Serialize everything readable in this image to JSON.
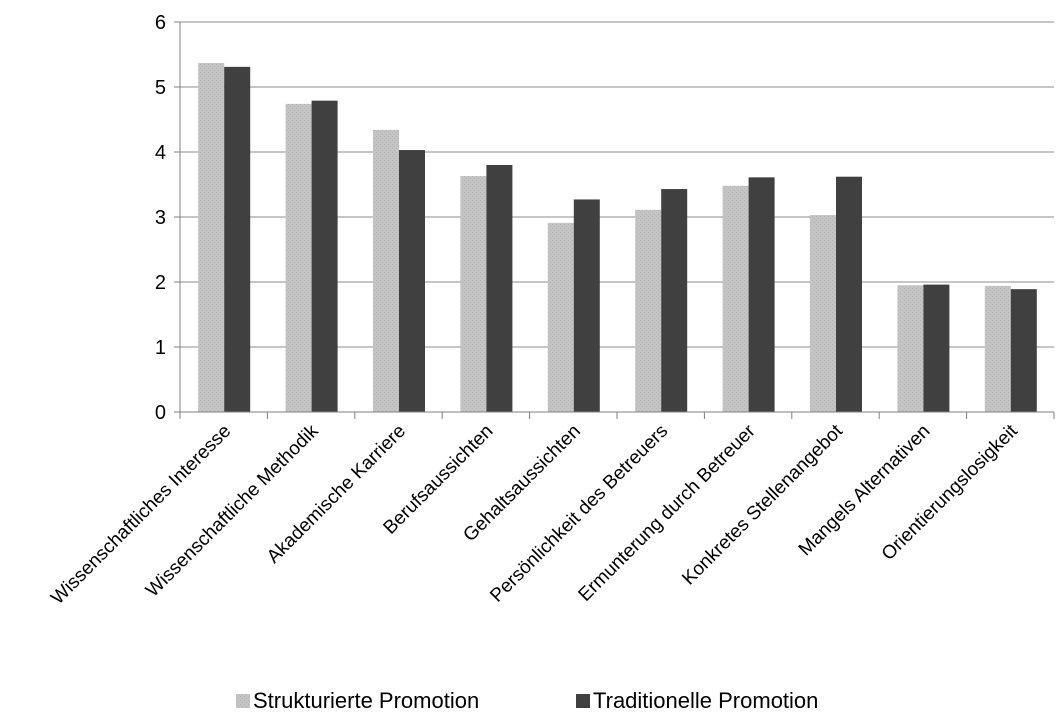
{
  "chart_data": {
    "type": "bar",
    "title": "",
    "xlabel": "",
    "ylabel": "",
    "ylim": [
      0,
      6
    ],
    "yticks": [
      0,
      1,
      2,
      3,
      4,
      5,
      6
    ],
    "grid": "horizontal",
    "legend_position": "bottom",
    "categories": [
      "Wissenschaftliches Interesse",
      "Wissenschaftliche Methodik",
      "Akademische Karriere",
      "Berufsaussichten",
      "Gehaltsaussichten",
      "Persönlichkeit des Betreuers",
      "Ermunterung durch Betreuer",
      "Konkretes Stellenangebot",
      "Mangels Alternativen",
      "Orientierungslosigkeit"
    ],
    "series": [
      {
        "name": "Strukturierte Promotion",
        "color": "#c0c0c0",
        "values": [
          5.37,
          4.74,
          4.34,
          3.63,
          2.91,
          3.11,
          3.48,
          3.03,
          1.95,
          1.94
        ]
      },
      {
        "name": "Traditionelle Promotion",
        "color": "#404040",
        "values": [
          5.31,
          4.79,
          4.03,
          3.8,
          3.27,
          3.43,
          3.61,
          3.62,
          1.96,
          1.89
        ]
      }
    ]
  }
}
